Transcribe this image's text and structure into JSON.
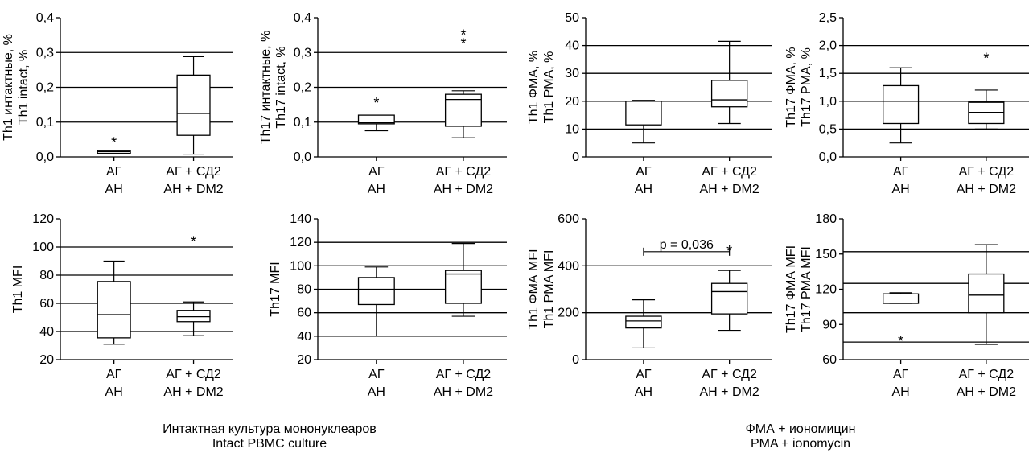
{
  "captions": {
    "left": {
      "ru": "Интактная культура мононуклеаров",
      "en": "Intact PBMC culture"
    },
    "right": {
      "ru": "ФМА + иономицин",
      "en": "PMA + ionomycin"
    }
  },
  "chart_data": [
    {
      "id": "th1-intact",
      "type": "box",
      "ylabel": [
        "Th1 интактные, %",
        "Th1 intact, %"
      ],
      "ylim": [
        0,
        0.4
      ],
      "yticks": [
        0,
        0.1,
        0.2,
        0.3,
        0.4
      ],
      "ytick_labels": [
        "0,0",
        "0,1",
        "0,2",
        "0,3",
        "0,4"
      ],
      "gridlines": [
        0.1,
        0.2,
        0.3
      ],
      "categories": [
        [
          "АГ",
          "АН"
        ],
        [
          "АГ + СД2",
          "АН + DM2"
        ]
      ],
      "boxes": [
        {
          "min": 0.01,
          "q1": 0.01,
          "median": 0.015,
          "q3": 0.018,
          "max": 0.018
        },
        {
          "min": 0.008,
          "q1": 0.062,
          "median": 0.125,
          "q3": 0.235,
          "max": 0.288
        }
      ],
      "markers": [
        {
          "group": 0,
          "y": 0.045,
          "text": "*"
        }
      ]
    },
    {
      "id": "th17-intact",
      "type": "box",
      "ylabel": [
        "Th17 интактные, %",
        "Th17 intact, %"
      ],
      "ylim": [
        0,
        0.4
      ],
      "yticks": [
        0,
        0.1,
        0.2,
        0.3,
        0.4
      ],
      "ytick_labels": [
        "0,0",
        "0,1",
        "0,2",
        "0,3",
        "0,4"
      ],
      "gridlines": [
        0.1,
        0.2,
        0.3
      ],
      "categories": [
        [
          "АГ",
          "АН"
        ],
        [
          "АГ + СД2",
          "АН + DM2"
        ]
      ],
      "boxes": [
        {
          "min": 0.075,
          "q1": 0.095,
          "median": 0.098,
          "q3": 0.12,
          "max": 0.12
        },
        {
          "min": 0.055,
          "q1": 0.088,
          "median": 0.165,
          "q3": 0.18,
          "max": 0.19
        }
      ],
      "markers": [
        {
          "group": 0,
          "y": 0.16,
          "text": "*"
        },
        {
          "group": 1,
          "y": 0.355,
          "text": "*"
        },
        {
          "group": 1,
          "y": 0.33,
          "text": "*"
        }
      ]
    },
    {
      "id": "th1-pma",
      "type": "box",
      "ylabel": [
        "Th1 ФМА, %",
        "Th1 PMA, %"
      ],
      "ylim": [
        0,
        50
      ],
      "yticks": [
        0,
        10,
        20,
        30,
        40,
        50
      ],
      "ytick_labels": [
        "0",
        "10",
        "20",
        "30",
        "40",
        "50"
      ],
      "gridlines": [
        10,
        20,
        30,
        40
      ],
      "categories": [
        [
          "АГ",
          "АН"
        ],
        [
          "АГ + СД2",
          "АН + DM2"
        ]
      ],
      "boxes": [
        {
          "min": 5,
          "q1": 11.5,
          "median": 20,
          "q3": 20,
          "max": 20.3
        },
        {
          "min": 12,
          "q1": 18,
          "median": 20.5,
          "q3": 27.5,
          "max": 41.5
        }
      ],
      "markers": []
    },
    {
      "id": "th17-pma",
      "type": "box",
      "ylabel": [
        "Th17 ФМА, %",
        "Th17 PMA, %"
      ],
      "ylim": [
        0,
        2.5
      ],
      "yticks": [
        0,
        0.5,
        1.0,
        1.5,
        2.0,
        2.5
      ],
      "ytick_labels": [
        "0,0",
        "0,5",
        "1,0",
        "1,5",
        "2,0",
        "2,5"
      ],
      "gridlines": [
        0.5,
        1.0,
        1.5,
        2.0
      ],
      "categories": [
        [
          "АГ",
          "АН"
        ],
        [
          "АГ + СД2",
          "АН + DM2"
        ]
      ],
      "boxes": [
        {
          "min": 0.25,
          "q1": 0.6,
          "median": 1.0,
          "q3": 1.28,
          "max": 1.6
        },
        {
          "min": 0.5,
          "q1": 0.6,
          "median": 0.8,
          "q3": 0.98,
          "max": 1.2
        }
      ],
      "markers": [
        {
          "group": 1,
          "y": 1.8,
          "text": "*"
        }
      ]
    },
    {
      "id": "th1-mfi",
      "type": "box",
      "ylabel": [
        "Th1 MFI"
      ],
      "ylim": [
        20,
        120
      ],
      "yticks": [
        20,
        40,
        60,
        80,
        100,
        120
      ],
      "ytick_labels": [
        "20",
        "40",
        "60",
        "80",
        "100",
        "120"
      ],
      "gridlines": [
        40,
        60,
        80,
        100
      ],
      "categories": [
        [
          "АГ",
          "АН"
        ],
        [
          "АГ + СД2",
          "АН + DM2"
        ]
      ],
      "boxes": [
        {
          "min": 31,
          "q1": 35.5,
          "median": 52,
          "q3": 75.5,
          "max": 90
        },
        {
          "min": 37,
          "q1": 47,
          "median": 50.5,
          "q3": 55,
          "max": 61
        }
      ],
      "markers": [
        {
          "group": 1,
          "y": 105,
          "text": "*"
        }
      ]
    },
    {
      "id": "th17-mfi",
      "type": "box",
      "ylabel": [
        "Th17 MFI"
      ],
      "ylim": [
        20,
        140
      ],
      "yticks": [
        20,
        40,
        60,
        80,
        100,
        120,
        140
      ],
      "ytick_labels": [
        "20",
        "40",
        "60",
        "80",
        "100",
        "120",
        "140"
      ],
      "gridlines": [
        40,
        60,
        80,
        100,
        120
      ],
      "categories": [
        [
          "АГ",
          "АН"
        ],
        [
          "АГ + СД2",
          "АН + DM2"
        ]
      ],
      "boxes": [
        {
          "min": 40,
          "q1": 67,
          "median": 80,
          "q3": 90,
          "max": 99
        },
        {
          "min": 57,
          "q1": 68,
          "median": 93,
          "q3": 96,
          "max": 119
        }
      ],
      "markers": []
    },
    {
      "id": "th1-pma-mfi",
      "type": "box",
      "ylabel": [
        "Th1 ФМА MFI",
        "Th1 PMA MFI"
      ],
      "ylim": [
        0,
        600
      ],
      "yticks": [
        0,
        200,
        400,
        600
      ],
      "ytick_labels": [
        "0",
        "200",
        "400",
        "600"
      ],
      "gridlines": [
        200,
        400
      ],
      "categories": [
        [
          "АГ",
          "АН"
        ],
        [
          "АГ + СД2",
          "АН + DM2"
        ]
      ],
      "boxes": [
        {
          "min": 50,
          "q1": 135,
          "median": 165,
          "q3": 185,
          "max": 255
        },
        {
          "min": 125,
          "q1": 195,
          "median": 290,
          "q3": 325,
          "max": 380
        }
      ],
      "markers": [
        {
          "group": 1,
          "y": 470,
          "text": "*"
        }
      ],
      "bracket": {
        "y": 460,
        "text": "p = 0,036"
      }
    },
    {
      "id": "th17-pma-mfi",
      "type": "box",
      "ylabel": [
        "Th17 ФМА MFI",
        "Th17 PMA MFI"
      ],
      "ylim": [
        60,
        180
      ],
      "yticks": [
        60,
        90,
        120,
        150,
        180
      ],
      "ytick_labels": [
        "60",
        "90",
        "120",
        "150",
        "180"
      ],
      "gridlines": [
        75,
        100,
        125,
        152
      ],
      "categories": [
        [
          "АГ",
          "АН"
        ],
        [
          "АГ + СД2",
          "АН + DM2"
        ]
      ],
      "boxes": [
        {
          "min": 108,
          "q1": 108,
          "median": 116,
          "q3": 116,
          "max": 117
        },
        {
          "min": 73,
          "q1": 100,
          "median": 115,
          "q3": 133,
          "max": 158
        }
      ],
      "markers": [
        {
          "group": 0,
          "y": 77,
          "text": "*"
        }
      ]
    }
  ]
}
